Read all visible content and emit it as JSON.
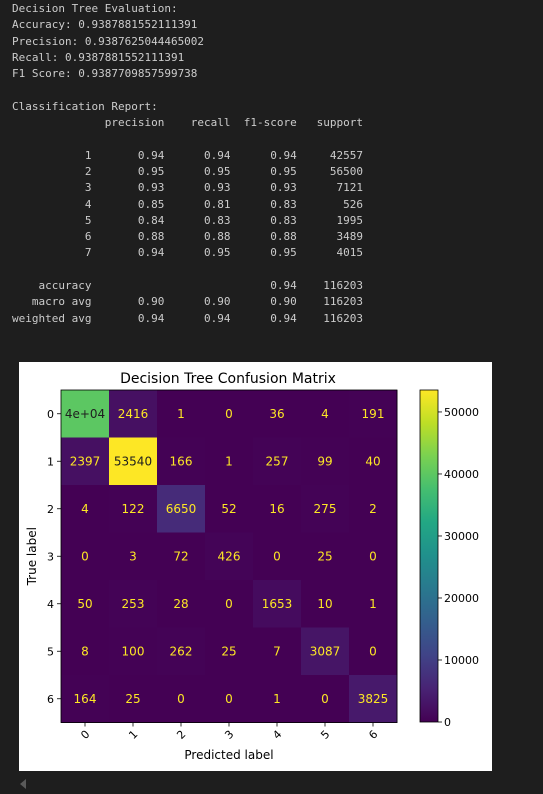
{
  "output": {
    "lines": [
      "Decision Tree Evaluation:",
      "Accuracy: 0.9387881552111391",
      "Precision: 0.9387625044465002",
      "Recall: 0.9387881552111391",
      "F1 Score: 0.9387709857599738",
      "",
      "Classification Report:",
      "              precision    recall  f1-score   support",
      "",
      "           1       0.94      0.94      0.94     42557",
      "           2       0.95      0.95      0.95     56500",
      "           3       0.93      0.93      0.93      7121",
      "           4       0.85      0.81      0.83       526",
      "           5       0.84      0.83      0.83      1995",
      "           6       0.88      0.88      0.88      3489",
      "           7       0.94      0.95      0.95      4015",
      "",
      "    accuracy                           0.94    116203",
      "   macro avg       0.90      0.90      0.90    116203",
      "weighted avg       0.94      0.94      0.94    116203"
    ]
  },
  "chart_data": {
    "type": "heatmap",
    "title": "Decision Tree Confusion Matrix",
    "xlabel": "Predicted label",
    "ylabel": "True label",
    "labels": [
      "0",
      "1",
      "2",
      "3",
      "4",
      "5",
      "6"
    ],
    "display_matrix": [
      [
        "4e+04",
        "2416",
        "1",
        "0",
        "36",
        "4",
        "191"
      ],
      [
        "2397",
        "53540",
        "166",
        "1",
        "257",
        "99",
        "40"
      ],
      [
        "4",
        "122",
        "6650",
        "52",
        "16",
        "275",
        "2"
      ],
      [
        "0",
        "3",
        "72",
        "426",
        "0",
        "25",
        "0"
      ],
      [
        "50",
        "253",
        "28",
        "0",
        "1653",
        "10",
        "1"
      ],
      [
        "8",
        "100",
        "262",
        "25",
        "7",
        "3087",
        "0"
      ],
      [
        "164",
        "25",
        "0",
        "0",
        "1",
        "0",
        "3825"
      ]
    ],
    "matrix": [
      [
        39909,
        2416,
        1,
        0,
        36,
        4,
        191
      ],
      [
        2397,
        53540,
        166,
        1,
        257,
        99,
        40
      ],
      [
        4,
        122,
        6650,
        52,
        16,
        275,
        2
      ],
      [
        0,
        3,
        72,
        426,
        0,
        25,
        0
      ],
      [
        50,
        253,
        28,
        0,
        1653,
        10,
        1
      ],
      [
        8,
        100,
        262,
        25,
        7,
        3087,
        0
      ],
      [
        164,
        25,
        0,
        0,
        1,
        0,
        3825
      ]
    ],
    "colormap": "viridis",
    "colorbar": {
      "ticks": [
        0,
        10000,
        20000,
        30000,
        40000,
        50000
      ],
      "range": [
        0,
        53540
      ]
    }
  }
}
